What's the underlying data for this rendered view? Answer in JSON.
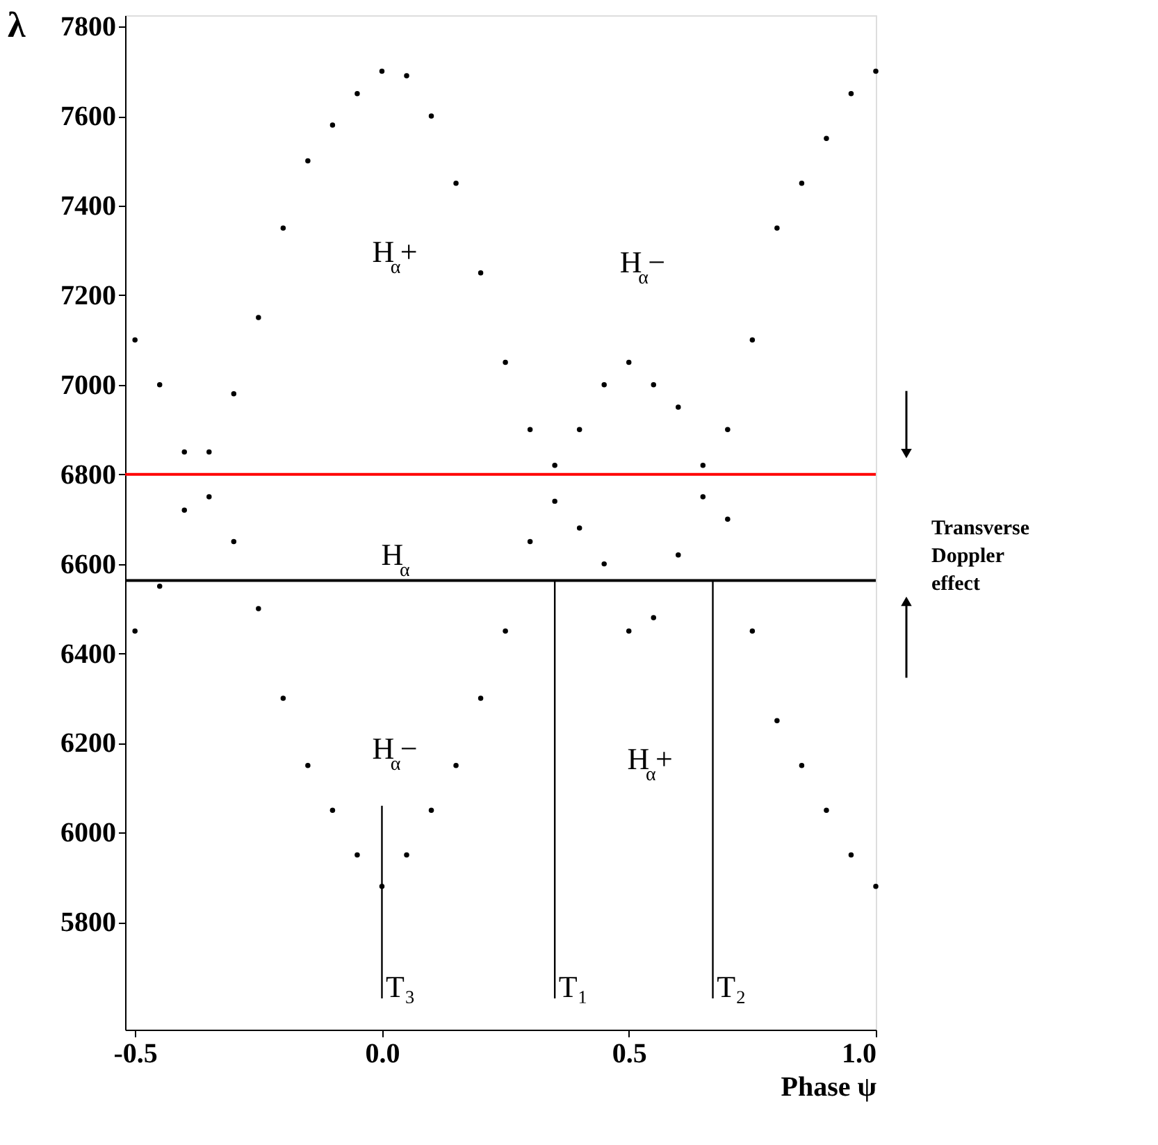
{
  "chart_data": {
    "type": "scatter",
    "xlabel": "Phase ψ",
    "ylabel": "λ",
    "xlim": [
      -0.52,
      1.0
    ],
    "ylim": [
      5560,
      7825
    ],
    "xticks": [
      -0.5,
      {
        "value": 0,
        "label": "0.0"
      },
      0.5,
      {
        "value": 1,
        "label": "1.0"
      }
    ],
    "yticks": [
      5800,
      6000,
      6200,
      6400,
      6600,
      6800,
      7000,
      7200,
      7400,
      7600,
      7800
    ],
    "grid": false,
    "marker": "circle",
    "series": [
      {
        "color": "#000000",
        "x": [
          -0.5,
          -0.45,
          -0.4,
          -0.35,
          -0.3,
          -0.25,
          -0.2,
          -0.15,
          -0.1,
          -0.05,
          0.0,
          0.05,
          0.1,
          0.15,
          0.2,
          0.25,
          0.3,
          0.35,
          0.4,
          0.45,
          0.5,
          0.55,
          0.6,
          0.65,
          0.7,
          0.75,
          0.8,
          0.85,
          0.9,
          0.95,
          1.0
        ],
        "values": [
          6450,
          6550,
          6720,
          6850,
          6980,
          7150,
          7350,
          7500,
          7580,
          7650,
          7700,
          7690,
          7600,
          7450,
          7250,
          7050,
          6900,
          6820,
          6680,
          6600,
          6450,
          6480,
          6620,
          6750,
          6900,
          7100,
          7350,
          7450,
          7550,
          7650,
          7700
        ]
      },
      {
        "color": "#000000",
        "x": [
          -0.5,
          -0.45,
          -0.4,
          -0.35,
          -0.3,
          -0.25,
          -0.2,
          -0.15,
          -0.1,
          -0.05,
          0.0,
          0.05,
          0.1,
          0.15,
          0.2,
          0.25,
          0.3,
          0.35,
          0.4,
          0.45,
          0.5,
          0.55,
          0.6,
          0.65,
          0.7,
          0.75,
          0.8,
          0.85,
          0.9,
          0.95,
          1.0
        ],
        "values": [
          7100,
          7000,
          6850,
          6750,
          6650,
          6500,
          6300,
          6150,
          6050,
          5950,
          5880,
          5950,
          6050,
          6150,
          6300,
          6450,
          6650,
          6740,
          6900,
          7000,
          7050,
          7000,
          6950,
          6820,
          6700,
          6450,
          6250,
          6150,
          6050,
          5950,
          5880
        ]
      },
      {
        "type": "line",
        "color": "#000000",
        "marker": "none",
        "line_style": "solid",
        "x": [
          0.0,
          0.0
        ],
        "values": [
          5630,
          6060
        ]
      },
      {
        "type": "line",
        "color": "#000000",
        "marker": "none",
        "line_style": "solid",
        "x": [
          0.35,
          0.35
        ],
        "values": [
          5630,
          6563
        ]
      },
      {
        "type": "line",
        "color": "#000000",
        "marker": "none",
        "line_style": "solid",
        "x": [
          0.67,
          0.67
        ],
        "values": [
          5630,
          6563
        ]
      }
    ],
    "ref_lines": [
      {
        "axis": "y",
        "value": 6800,
        "color": "#ff0000"
      },
      {
        "axis": "y",
        "value": 6563,
        "color": "#000000",
        "label": "H$_{α}$"
      }
    ],
    "annotations": [
      "H$_{α}$+",
      "H$_{α}$−",
      "H$_{α}$−",
      "H$_{α}$+",
      {
        "text": "T₃",
        "x": 0.0,
        "y": 5630
      },
      {
        "text": "T₁",
        "x": 0.35,
        "y": 5630
      },
      {
        "text": "T₂",
        "x": 0.67,
        "y": 5630
      },
      "Transverse Doppler effect"
    ]
  }
}
